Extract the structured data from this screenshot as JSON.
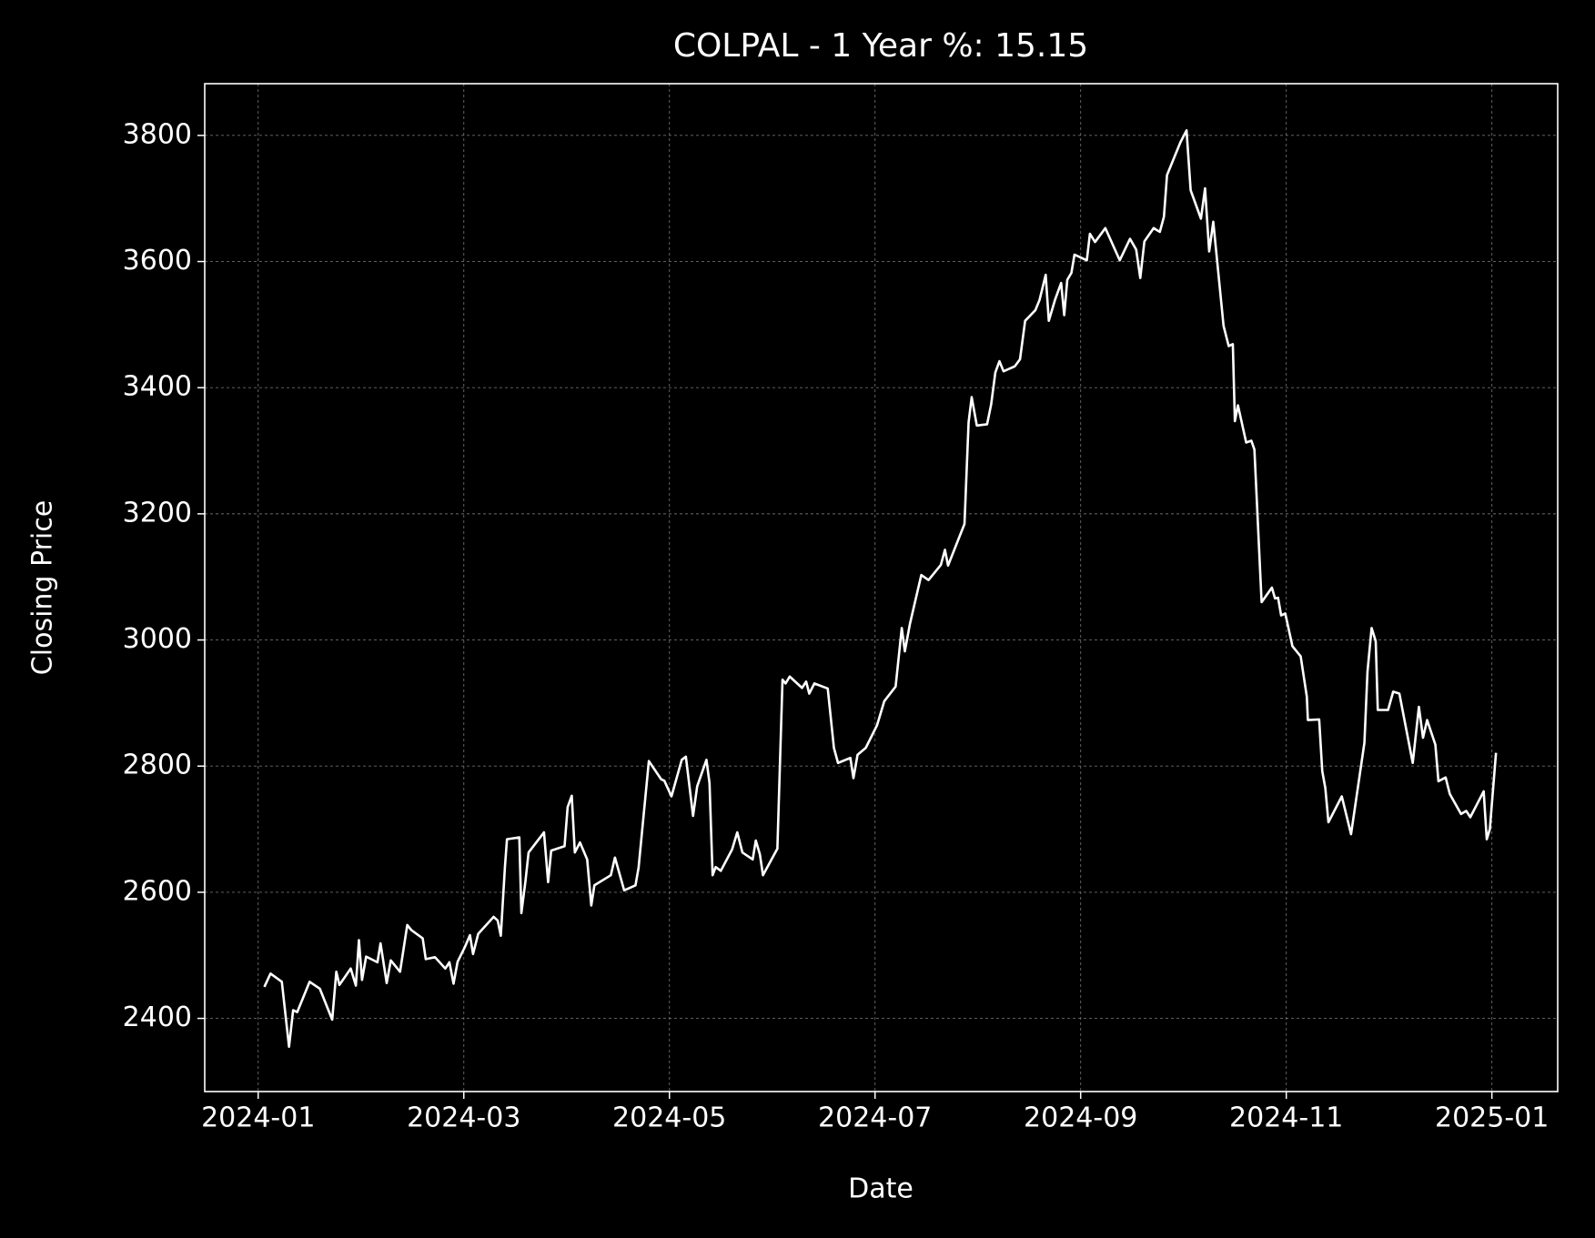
{
  "chart_data": {
    "type": "line",
    "title": "COLPAL - 1 Year %: 15.15",
    "x_label": "Date",
    "y_label": "Closing Price",
    "color": "#ffffff",
    "grid": true,
    "xlim": [
      -0.52,
      12.64
    ],
    "ylim": [
      2284,
      3882
    ],
    "xticks": [
      {
        "value": 0,
        "label": "2024-01"
      },
      {
        "value": 2,
        "label": "2024-03"
      },
      {
        "value": 4,
        "label": "2024-05"
      },
      {
        "value": 6,
        "label": "2024-07"
      },
      {
        "value": 8,
        "label": "2024-09"
      },
      {
        "value": 10,
        "label": "2024-11"
      },
      {
        "value": 12,
        "label": "2025-01"
      }
    ],
    "yticks": [
      2400,
      2600,
      2800,
      3000,
      3200,
      3400,
      3600,
      3800
    ],
    "x": [
      0.06,
      0.12,
      0.23,
      0.3,
      0.34,
      0.38,
      0.5,
      0.6,
      0.72,
      0.76,
      0.79,
      0.9,
      0.95,
      0.98,
      1.01,
      1.05,
      1.16,
      1.19,
      1.25,
      1.29,
      1.38,
      1.45,
      1.49,
      1.6,
      1.63,
      1.72,
      1.82,
      1.86,
      1.9,
      1.94,
      2.01,
      2.06,
      2.09,
      2.14,
      2.29,
      2.33,
      2.36,
      2.4,
      2.42,
      2.54,
      2.56,
      2.6,
      2.63,
      2.78,
      2.82,
      2.85,
      2.98,
      3.01,
      3.05,
      3.08,
      3.13,
      3.2,
      3.24,
      3.27,
      3.43,
      3.47,
      3.56,
      3.67,
      3.7,
      3.8,
      3.92,
      3.95,
      4.02,
      4.12,
      4.16,
      4.23,
      4.27,
      4.36,
      4.39,
      4.42,
      4.45,
      4.5,
      4.61,
      4.66,
      4.71,
      4.81,
      4.84,
      4.88,
      4.91,
      5.05,
      5.1,
      5.13,
      5.17,
      5.29,
      5.33,
      5.36,
      5.41,
      5.54,
      5.6,
      5.64,
      5.76,
      5.79,
      5.83,
      5.91,
      6.02,
      6.09,
      6.2,
      6.26,
      6.29,
      6.34,
      6.45,
      6.52,
      6.64,
      6.68,
      6.71,
      6.87,
      6.91,
      6.94,
      6.99,
      7.09,
      7.13,
      7.17,
      7.21,
      7.25,
      7.36,
      7.41,
      7.46,
      7.56,
      7.6,
      7.66,
      7.69,
      7.75,
      7.81,
      7.84,
      7.87,
      7.91,
      7.94,
      8.06,
      8.09,
      8.14,
      8.24,
      8.38,
      8.48,
      8.54,
      8.58,
      8.62,
      8.71,
      8.77,
      8.81,
      8.84,
      8.97,
      9.03,
      9.07,
      9.17,
      9.21,
      9.25,
      9.29,
      9.39,
      9.44,
      9.48,
      9.5,
      9.53,
      9.61,
      9.66,
      9.69,
      9.76,
      9.86,
      9.89,
      9.92,
      9.95,
      9.99,
      10.06,
      10.14,
      10.2,
      10.21,
      10.32,
      10.35,
      10.38,
      10.41,
      10.54,
      10.63,
      10.76,
      10.79,
      10.83,
      10.87,
      10.89,
      10.99,
      11.04,
      11.1,
      11.23,
      11.29,
      11.33,
      11.37,
      11.45,
      11.48,
      11.55,
      11.59,
      11.7,
      11.75,
      11.79,
      11.92,
      11.95,
      11.98,
      12.04
    ],
    "values": [
      2450,
      2471,
      2458,
      2355,
      2413,
      2410,
      2458,
      2447,
      2398,
      2474,
      2453,
      2479,
      2452,
      2524,
      2461,
      2498,
      2489,
      2519,
      2456,
      2492,
      2474,
      2548,
      2540,
      2527,
      2494,
      2497,
      2479,
      2489,
      2455,
      2490,
      2513,
      2532,
      2502,
      2534,
      2561,
      2555,
      2531,
      2640,
      2684,
      2687,
      2567,
      2618,
      2663,
      2695,
      2616,
      2666,
      2673,
      2735,
      2753,
      2663,
      2679,
      2652,
      2579,
      2611,
      2627,
      2655,
      2603,
      2611,
      2639,
      2808,
      2779,
      2777,
      2752,
      2810,
      2815,
      2721,
      2768,
      2810,
      2773,
      2627,
      2640,
      2634,
      2668,
      2695,
      2663,
      2652,
      2682,
      2660,
      2627,
      2669,
      2937,
      2931,
      2942,
      2924,
      2934,
      2915,
      2931,
      2923,
      2829,
      2805,
      2813,
      2781,
      2818,
      2829,
      2865,
      2903,
      2926,
      3019,
      2982,
      3026,
      3103,
      3095,
      3119,
      3143,
      3118,
      3184,
      3345,
      3385,
      3340,
      3342,
      3374,
      3424,
      3442,
      3426,
      3434,
      3445,
      3506,
      3523,
      3539,
      3579,
      3506,
      3539,
      3566,
      3515,
      3571,
      3582,
      3611,
      3602,
      3644,
      3631,
      3653,
      3602,
      3636,
      3619,
      3574,
      3632,
      3653,
      3647,
      3671,
      3737,
      3789,
      3808,
      3713,
      3668,
      3716,
      3616,
      3663,
      3498,
      3466,
      3469,
      3347,
      3372,
      3313,
      3316,
      3302,
      3060,
      3083,
      3066,
      3067,
      3039,
      3042,
      2990,
      2974,
      2910,
      2873,
      2874,
      2792,
      2765,
      2711,
      2752,
      2692,
      2837,
      2950,
      3019,
      2998,
      2889,
      2889,
      2918,
      2915,
      2805,
      2894,
      2845,
      2873,
      2834,
      2776,
      2782,
      2756,
      2724,
      2729,
      2719,
      2760,
      2684,
      2700,
      2821
    ]
  }
}
